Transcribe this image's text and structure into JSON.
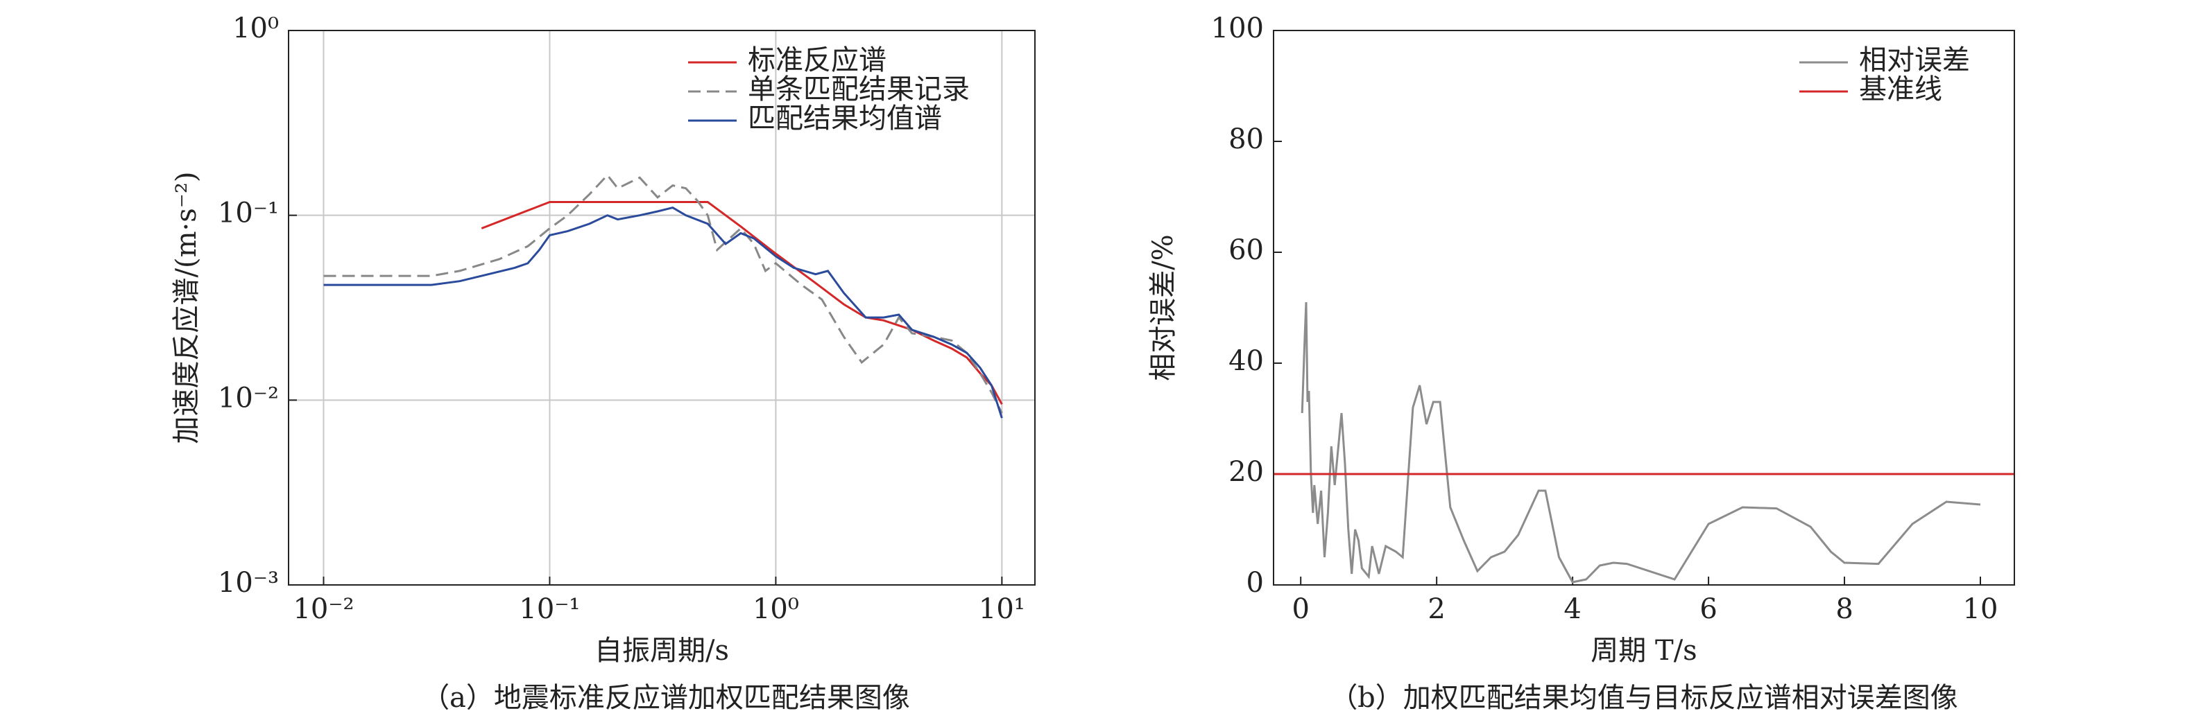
{
  "chart_data": [
    {
      "type": "line",
      "caption": "（a）地震标准反应谱加权匹配结果图像",
      "xlabel": "自振周期/s",
      "ylabel": "加速度反应谱/(m·s⁻²)",
      "xlog": true,
      "ylog": true,
      "grid": true,
      "legend": "upper right",
      "xlim": [
        0.007,
        14
      ],
      "ylim": [
        0.001,
        1
      ],
      "xticks": [
        {
          "value": 0.01,
          "label": "10⁻²"
        },
        {
          "value": 0.1,
          "label": "10⁻¹"
        },
        {
          "value": 1,
          "label": "10⁰"
        },
        {
          "value": 10,
          "label": "10¹"
        }
      ],
      "yticks": [
        {
          "value": 0.001,
          "label": "10⁻³"
        },
        {
          "value": 0.01,
          "label": "10⁻²"
        },
        {
          "value": 0.1,
          "label": "10⁻¹"
        },
        {
          "value": 1,
          "label": "10⁰"
        }
      ],
      "series": [
        {
          "name": "标准反应谱",
          "color": "#d62728",
          "style": "solid",
          "x": [
            0.05,
            0.1,
            0.5,
            0.7,
            1,
            1.5,
            2,
            2.5,
            3,
            4,
            5,
            6,
            7,
            8,
            9,
            10
          ],
          "values": [
            0.085,
            0.118,
            0.118,
            0.087,
            0.062,
            0.043,
            0.033,
            0.028,
            0.027,
            0.024,
            0.021,
            0.019,
            0.017,
            0.014,
            0.012,
            0.0095
          ]
        },
        {
          "name": "单条匹配结果记录",
          "color": "#888888",
          "style": "dashed",
          "x": [
            0.01,
            0.03,
            0.04,
            0.06,
            0.08,
            0.1,
            0.12,
            0.15,
            0.18,
            0.2,
            0.25,
            0.3,
            0.35,
            0.4,
            0.45,
            0.5,
            0.55,
            0.7,
            0.8,
            0.9,
            1,
            1.3,
            1.6,
            2,
            2.4,
            3,
            3.5,
            4,
            5,
            6,
            7,
            8,
            9,
            10
          ],
          "values": [
            0.047,
            0.047,
            0.05,
            0.058,
            0.068,
            0.085,
            0.1,
            0.13,
            0.165,
            0.14,
            0.16,
            0.125,
            0.145,
            0.14,
            0.12,
            0.1,
            0.065,
            0.085,
            0.07,
            0.05,
            0.055,
            0.042,
            0.035,
            0.022,
            0.016,
            0.02,
            0.028,
            0.023,
            0.022,
            0.021,
            0.018,
            0.014,
            0.011,
            0.0085
          ]
        },
        {
          "name": "匹配结果均值谱",
          "color": "#2a4a9c",
          "style": "solid",
          "x": [
            0.01,
            0.03,
            0.04,
            0.05,
            0.07,
            0.08,
            0.09,
            0.1,
            0.12,
            0.15,
            0.18,
            0.2,
            0.25,
            0.3,
            0.35,
            0.4,
            0.5,
            0.6,
            0.7,
            0.8,
            1,
            1.2,
            1.5,
            1.7,
            2,
            2.5,
            3,
            3.5,
            4,
            5,
            6,
            7,
            8,
            9,
            10
          ],
          "values": [
            0.042,
            0.042,
            0.044,
            0.047,
            0.052,
            0.055,
            0.065,
            0.078,
            0.082,
            0.09,
            0.1,
            0.095,
            0.1,
            0.105,
            0.11,
            0.1,
            0.09,
            0.07,
            0.08,
            0.075,
            0.06,
            0.052,
            0.048,
            0.05,
            0.038,
            0.028,
            0.028,
            0.029,
            0.024,
            0.022,
            0.02,
            0.018,
            0.015,
            0.012,
            0.008
          ]
        }
      ]
    },
    {
      "type": "line",
      "caption": "（b）加权匹配结果均值与目标反应谱相对误差图像",
      "xlabel": "周期 T/s",
      "ylabel": "相对误差/%",
      "xlog": false,
      "ylog": false,
      "grid": false,
      "legend": "upper right",
      "xlim": [
        -0.4,
        10.5
      ],
      "ylim": [
        0,
        100
      ],
      "xticks": [
        0,
        2,
        4,
        6,
        8,
        10
      ],
      "yticks": [
        0,
        20,
        40,
        60,
        80,
        100
      ],
      "series": [
        {
          "name": "相对误差",
          "color": "#8c8c8c",
          "style": "solid",
          "x": [
            0.02,
            0.06,
            0.08,
            0.1,
            0.12,
            0.15,
            0.18,
            0.2,
            0.25,
            0.3,
            0.35,
            0.4,
            0.45,
            0.5,
            0.6,
            0.65,
            0.7,
            0.75,
            0.8,
            0.85,
            0.9,
            1.0,
            1.05,
            1.15,
            1.25,
            1.4,
            1.5,
            1.65,
            1.75,
            1.85,
            1.95,
            2.05,
            2.2,
            2.4,
            2.6,
            2.8,
            3.0,
            3.2,
            3.5,
            3.6,
            3.8,
            4.0,
            4.2,
            4.4,
            4.6,
            4.8,
            5.5,
            6,
            6.5,
            7,
            7.5,
            7.8,
            8,
            8.5,
            9,
            9.5,
            10
          ],
          "values": [
            31,
            45,
            51,
            33,
            35,
            20,
            13,
            18,
            11,
            17,
            5,
            13,
            25,
            18,
            31,
            22,
            10,
            2,
            10,
            8,
            3,
            1.5,
            7,
            2,
            7,
            6,
            5,
            32,
            36,
            29,
            33,
            33,
            14,
            8,
            2.5,
            5,
            6,
            9,
            17,
            17,
            5,
            0.5,
            1,
            3.5,
            4,
            3.8,
            1,
            11,
            14,
            13.8,
            10.5,
            6,
            4,
            3.8,
            11,
            15,
            14.5
          ]
        }
      ],
      "baseline": {
        "name": "基准线",
        "color": "#d62728",
        "value": 20
      }
    }
  ]
}
